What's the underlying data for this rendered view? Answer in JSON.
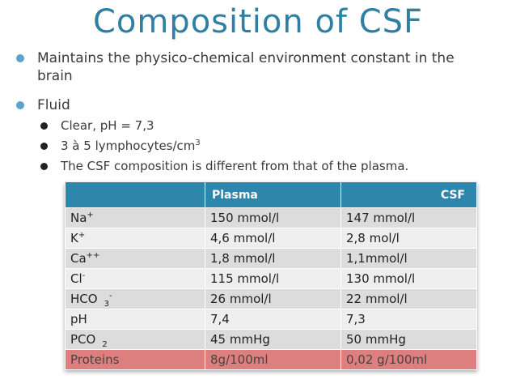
{
  "title": "Composition of CSF",
  "bullets": {
    "b1": "Maintains the physico-chemical environment constant in the",
    "b1_cont": "brain",
    "b2": "Fluid",
    "sub1": "Clear, pH = 7,3",
    "sub2": "3 à 5 lymphocytes/cm",
    "sub2_sup": "3",
    "sub3": "The CSF composition is different from that of  the plasma."
  },
  "table": {
    "headers": [
      "",
      "Plasma",
      "CSF"
    ],
    "rows": [
      {
        "label": "Na",
        "sup": "+",
        "sub": "",
        "plasma": "150 mmol/l",
        "csf": "147 mmol/l"
      },
      {
        "label": "K",
        "sup": "+",
        "sub": "",
        "plasma": "4,6 mmol/l",
        "csf": "2,8 mol/l"
      },
      {
        "label": "Ca",
        "sup": "++",
        "sub": "",
        "plasma": "1,8 mmol/l",
        "csf": "1,1mmol/l"
      },
      {
        "label": "Cl",
        "sup": "-",
        "sub": "",
        "plasma": "115 mmol/l",
        "csf": "130 mmol/l"
      },
      {
        "label": "HCO",
        "sup": "-",
        "sub": "3",
        "plasma": "26 mmol/l",
        "csf": "22 mmol/l"
      },
      {
        "label": "pH",
        "sup": "",
        "sub": "",
        "plasma": "7,4",
        "csf": "7,3"
      },
      {
        "label": "PCO",
        "sup": "",
        "sub": "2",
        "plasma": "45 mmHg",
        "csf": "50 mmHg"
      },
      {
        "label": "Proteins",
        "sup": "",
        "sub": "",
        "plasma": "8g/100ml",
        "csf": "0,02 g/100ml"
      }
    ]
  },
  "colors": {
    "title": "#2e7fa3",
    "header_bg": "#2e86ad",
    "highlight_row": "#dd7f7f"
  }
}
